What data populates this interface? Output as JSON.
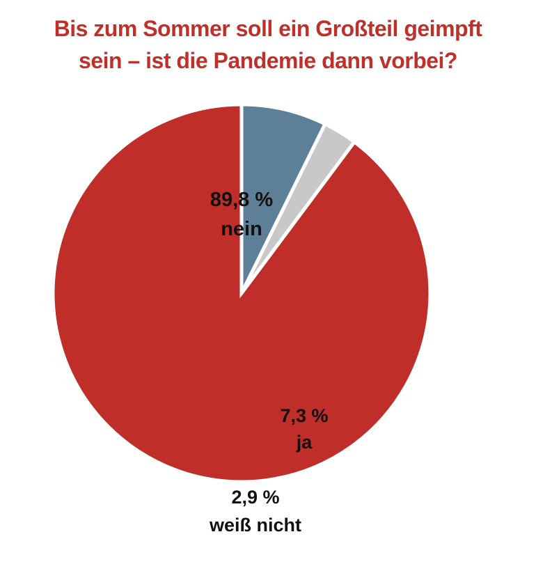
{
  "chart_data": {
    "type": "pie",
    "title": [
      "Bis zum Sommer soll ein Großteil geimpft",
      "sein – ist die Pandemie dann vorbei?"
    ],
    "slices": [
      {
        "label": "nein",
        "value": 89.8,
        "value_label": "89,8 %",
        "color": "#bf2e29"
      },
      {
        "label": "ja",
        "value": 7.3,
        "value_label": "7,3 %",
        "color": "#5d7f97"
      },
      {
        "label": "weiß nicht",
        "value": 2.9,
        "value_label": "2,9 %",
        "color": "#c8c8c8"
      }
    ],
    "start": "12 o'clock",
    "direction": "counter-clockwise",
    "legend": "none"
  }
}
